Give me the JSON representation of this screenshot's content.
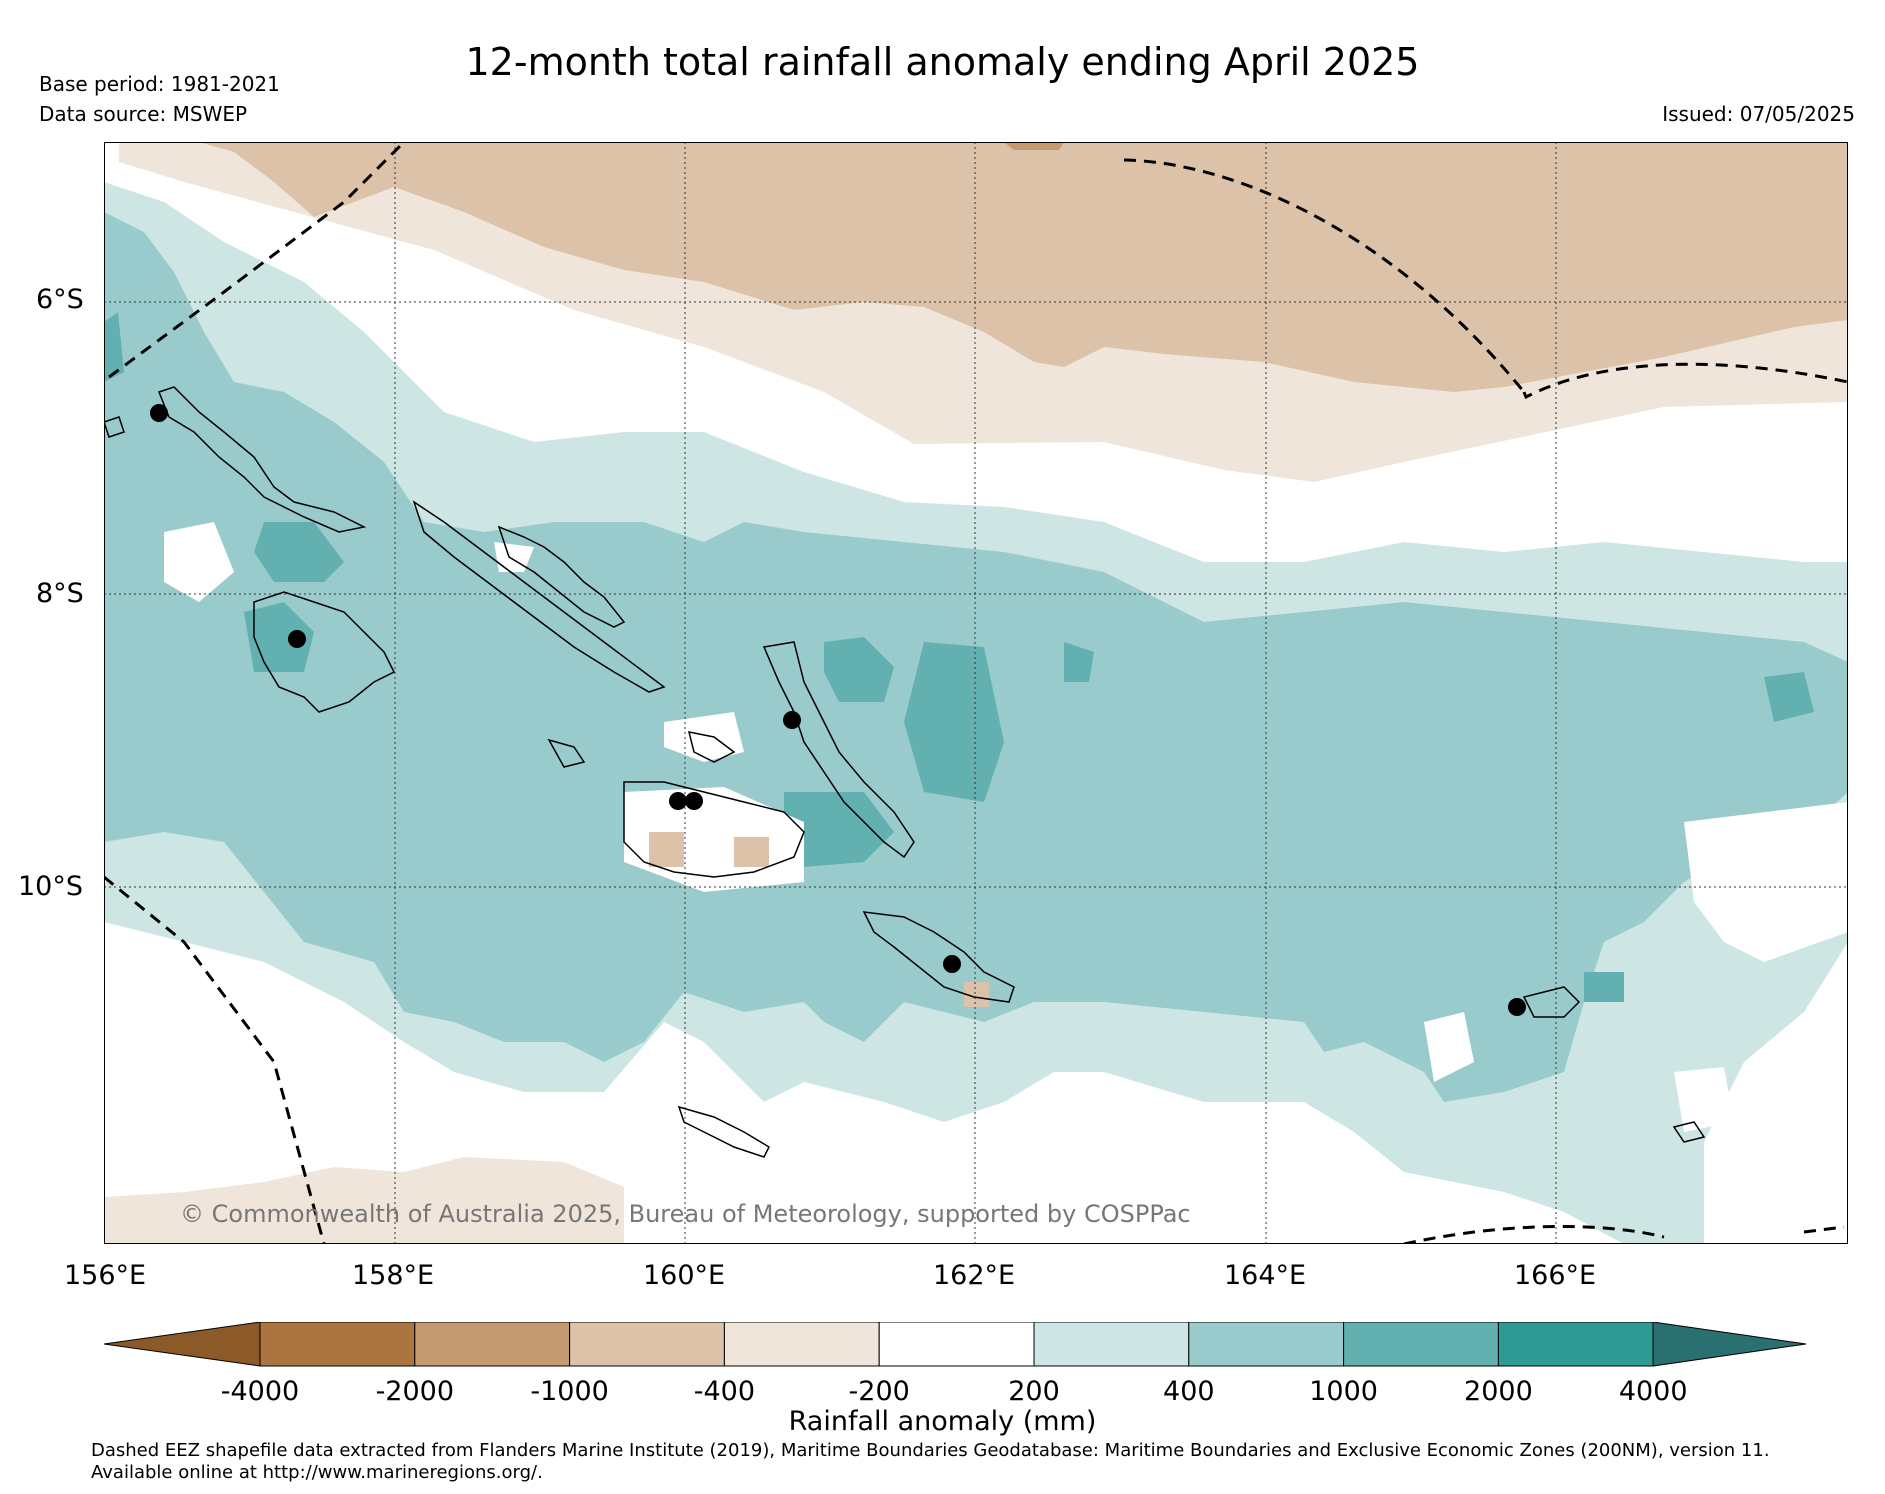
{
  "title": "12-month total rainfall anomaly ending April 2025",
  "base_period": "Base period: 1981-2021",
  "data_source": "Data source: MSWEP",
  "issued": "Issued: 07/05/2025",
  "lat_labels": [
    "6°S",
    "8°S",
    "10°S"
  ],
  "lon_labels": [
    "156°E",
    "158°E",
    "160°E",
    "162°E",
    "164°E",
    "166°E"
  ],
  "copyright": "© Commonwealth of Australia 2025, Bureau of Meteorology, supported by COSPPac",
  "colorbar": {
    "title": "Rainfall anomaly (mm)",
    "tick_labels": [
      "-4000",
      "-2000",
      "-1000",
      "-400",
      "-200",
      "200",
      "400",
      "1000",
      "2000",
      "4000"
    ],
    "colors": [
      "#8c5a28",
      "#ab7440",
      "#c49a70",
      "#dbc2a8",
      "#f0e5da",
      "#ffffff",
      "#cde6e4",
      "#9acbcc",
      "#63b0b0",
      "#2e9a94",
      "#2a7070"
    ]
  },
  "footnote_line1": "Dashed EEZ shapefile data extracted from Flanders Marine Institute (2019), Maritime Boundaries Geodatabase: Maritime Boundaries and Exclusive Economic Zones (200NM), version 11.",
  "footnote_line2": "Available online at http://www.marineregions.org/."
}
